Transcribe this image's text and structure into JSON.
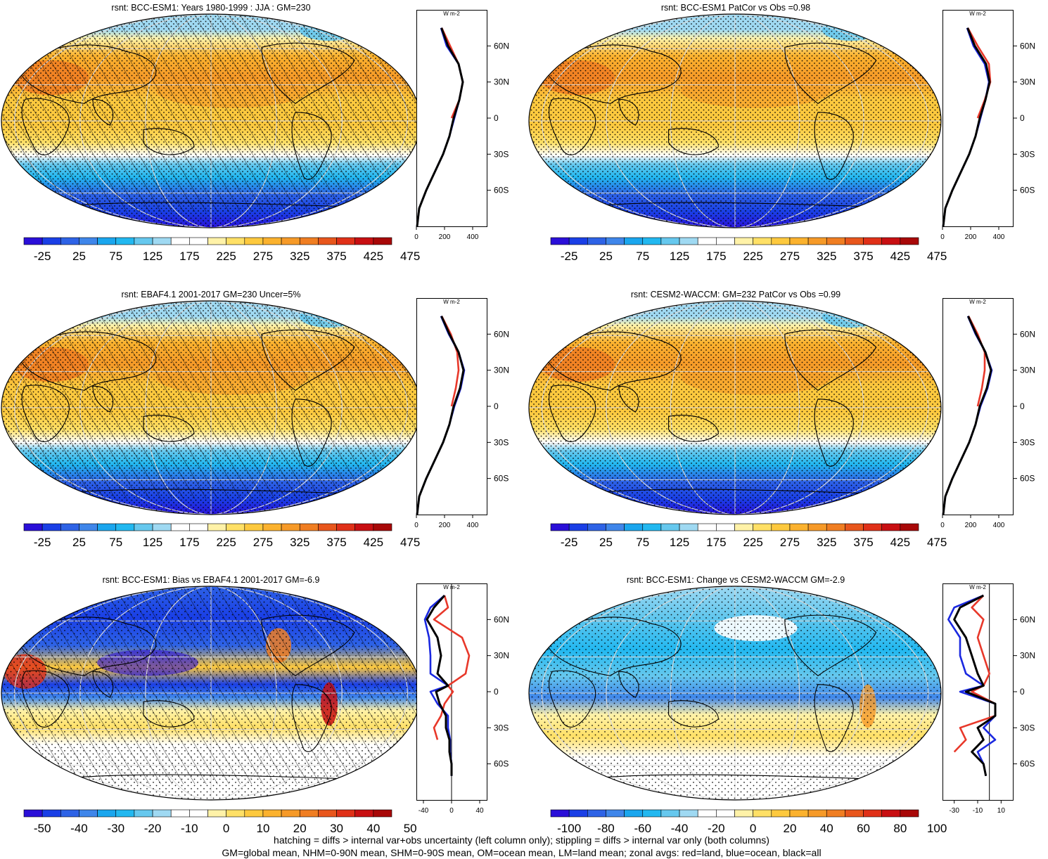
{
  "panels": [
    {
      "id": "p1",
      "title": "rsnt: BCC-ESM1: Years 1980-1999 : JJA : GM=230",
      "map_type": "abs",
      "hatch": true,
      "stipple": "dense",
      "colorbar": {
        "labels": [
          "-25",
          "25",
          "75",
          "125",
          "175",
          "225",
          "275",
          "325",
          "375",
          "425",
          "475"
        ]
      },
      "profile": {
        "xticks": [
          "0",
          "200",
          "400"
        ],
        "xlim": [
          0,
          500
        ],
        "zero": false
      }
    },
    {
      "id": "p2",
      "title": "rsnt: BCC-ESM1 PatCor vs Obs =0.98",
      "map_type": "abs",
      "hatch": false,
      "stipple": "dense",
      "colorbar": {
        "labels": [
          "-25",
          "25",
          "75",
          "125",
          "175",
          "225",
          "275",
          "325",
          "375",
          "425",
          "475"
        ]
      },
      "profile": {
        "xticks": [
          "0",
          "200",
          "400"
        ],
        "xlim": [
          0,
          500
        ],
        "zero": false
      }
    },
    {
      "id": "p3",
      "title": "rsnt: EBAF4.1 2001-2017 GM=230 Uncer=5%",
      "map_type": "abs",
      "hatch": true,
      "stipple": "dense",
      "colorbar": {
        "labels": [
          "-25",
          "25",
          "75",
          "125",
          "175",
          "225",
          "275",
          "325",
          "375",
          "425",
          "475"
        ]
      },
      "profile": {
        "xticks": [
          "0",
          "200",
          "400"
        ],
        "xlim": [
          0,
          500
        ],
        "zero": false
      }
    },
    {
      "id": "p4",
      "title": "rsnt: CESM2-WACCM: GM=232 PatCor vs Obs =0.99",
      "map_type": "abs",
      "hatch": false,
      "stipple": "dense",
      "colorbar": {
        "labels": [
          "-25",
          "25",
          "75",
          "125",
          "175",
          "225",
          "275",
          "325",
          "375",
          "425",
          "475"
        ]
      },
      "profile": {
        "xticks": [
          "0",
          "200",
          "400"
        ],
        "xlim": [
          0,
          500
        ],
        "zero": false
      }
    },
    {
      "id": "p5",
      "title": "rsnt: BCC-ESM1: Bias vs EBAF4.1 2001-2017 GM=-6.9",
      "map_type": "bias",
      "hatch": true,
      "stipple": "sparse",
      "colorbar": {
        "labels": [
          "-50",
          "-40",
          "-30",
          "-20",
          "-10",
          "0",
          "10",
          "20",
          "30",
          "40",
          "50"
        ]
      },
      "profile": {
        "xticks": [
          "-40",
          "0",
          "40"
        ],
        "xlim": [
          -50,
          50
        ],
        "zero": true
      }
    },
    {
      "id": "p6",
      "title": "rsnt: BCC-ESM1: Change vs CESM2-WACCM GM=-2.9",
      "map_type": "change",
      "hatch": false,
      "stipple": "sparse",
      "colorbar": {
        "labels": [
          "-100",
          "-80",
          "-60",
          "-40",
          "-20",
          "0",
          "20",
          "40",
          "60",
          "80",
          "100"
        ]
      },
      "profile": {
        "xticks": [
          "-30",
          "-10",
          "10"
        ],
        "xlim": [
          -40,
          20
        ],
        "zero": true
      }
    }
  ],
  "profile_unit": "W m-2",
  "lat_labels": [
    "60N",
    "30N",
    "0",
    "30S",
    "60S"
  ],
  "colors": {
    "palette": [
      "#2a0fd8",
      "#1a3fe6",
      "#2e63e6",
      "#3f86ea",
      "#1aa6ee",
      "#22b8f0",
      "#66c8ee",
      "#9fd9f2",
      "#ffffff",
      "#ffffff",
      "#fff2a8",
      "#ffe066",
      "#fdc93e",
      "#fbb22e",
      "#f69a28",
      "#f07e22",
      "#e8561c",
      "#e03018",
      "#c80f12",
      "#a80808"
    ],
    "land": "#e8382a",
    "ocean": "#1a28e0",
    "all": "#000000"
  },
  "chart_data": [
    {
      "type": "map-with-zonal-profile",
      "panel": "p1",
      "title": "rsnt: BCC-ESM1: Years 1980-1999 : JJA : GM=230",
      "lat": [
        90,
        75,
        60,
        45,
        30,
        15,
        0,
        -15,
        -30,
        -45,
        -60,
        -75,
        -90
      ],
      "series": [
        {
          "name": "red=land",
          "values": [
            null,
            180,
            240,
            300,
            330,
            305,
            250,
            null,
            null,
            null,
            null,
            null,
            null
          ]
        },
        {
          "name": "blue=ocean",
          "values": [
            null,
            175,
            215,
            300,
            330,
            305,
            270,
            235,
            190,
            130,
            70,
            20,
            5
          ]
        },
        {
          "name": "black=all",
          "values": [
            null,
            178,
            225,
            300,
            330,
            305,
            265,
            235,
            190,
            130,
            70,
            20,
            5
          ]
        }
      ],
      "xlim": [
        0,
        500
      ],
      "ylim": [
        -90,
        90
      ]
    },
    {
      "type": "map-with-zonal-profile",
      "panel": "p2",
      "title": "rsnt: BCC-ESM1 PatCor vs Obs =0.98",
      "lat": [
        90,
        75,
        60,
        45,
        30,
        15,
        0,
        -15,
        -30,
        -45,
        -60,
        -75,
        -90
      ],
      "series": [
        {
          "name": "red=land",
          "values": [
            null,
            180,
            250,
            330,
            340,
            300,
            250,
            null,
            null,
            null,
            null,
            null,
            null
          ]
        },
        {
          "name": "blue=ocean",
          "values": [
            null,
            175,
            220,
            300,
            330,
            305,
            270,
            235,
            190,
            130,
            70,
            20,
            5
          ]
        },
        {
          "name": "black=all",
          "values": [
            null,
            178,
            230,
            310,
            335,
            305,
            265,
            235,
            190,
            130,
            70,
            20,
            5
          ]
        }
      ],
      "xlim": [
        0,
        500
      ],
      "ylim": [
        -90,
        90
      ]
    },
    {
      "type": "map-with-zonal-profile",
      "panel": "p3",
      "title": "rsnt: EBAF4.1 2001-2017 GM=230 Uncer=5%",
      "lat": [
        90,
        75,
        60,
        45,
        30,
        15,
        0,
        -15,
        -30,
        -45,
        -60,
        -75,
        -90
      ],
      "series": [
        {
          "name": "red=land",
          "values": [
            null,
            180,
            245,
            290,
            300,
            280,
            250,
            null,
            null,
            null,
            null,
            null,
            null
          ]
        },
        {
          "name": "blue=ocean",
          "values": [
            null,
            175,
            230,
            300,
            340,
            315,
            270,
            235,
            190,
            130,
            70,
            20,
            5
          ]
        },
        {
          "name": "black=all",
          "values": [
            null,
            178,
            235,
            300,
            335,
            310,
            265,
            235,
            190,
            130,
            70,
            20,
            5
          ]
        }
      ],
      "xlim": [
        0,
        500
      ],
      "ylim": [
        -90,
        90
      ]
    },
    {
      "type": "map-with-zonal-profile",
      "panel": "p4",
      "title": "rsnt: CESM2-WACCM: GM=232 PatCor vs Obs =0.99",
      "lat": [
        90,
        75,
        60,
        45,
        30,
        15,
        0,
        -15,
        -30,
        -45,
        -60,
        -75,
        -90
      ],
      "series": [
        {
          "name": "red=land",
          "values": [
            null,
            185,
            250,
            300,
            300,
            280,
            250,
            null,
            null,
            null,
            null,
            null,
            null
          ]
        },
        {
          "name": "blue=ocean",
          "values": [
            null,
            180,
            235,
            305,
            350,
            320,
            270,
            235,
            190,
            130,
            70,
            20,
            5
          ]
        },
        {
          "name": "black=all",
          "values": [
            null,
            182,
            240,
            305,
            345,
            315,
            265,
            235,
            190,
            130,
            70,
            20,
            5
          ]
        }
      ],
      "xlim": [
        0,
        500
      ],
      "ylim": [
        -90,
        90
      ]
    },
    {
      "type": "map-with-zonal-profile",
      "panel": "p5",
      "title": "rsnt: BCC-ESM1: Bias vs EBAF4.1 2001-2017 GM=-6.9",
      "lat": [
        80,
        70,
        60,
        45,
        30,
        15,
        5,
        0,
        -10,
        -20,
        -30,
        -40,
        -50,
        -60,
        -70
      ],
      "series": [
        {
          "name": "red=land",
          "values": [
            -10,
            -5,
            -25,
            15,
            25,
            20,
            -5,
            2,
            -10,
            -15,
            -25,
            -20,
            null,
            null,
            null
          ]
        },
        {
          "name": "blue=ocean",
          "values": [
            -10,
            -30,
            -38,
            -32,
            -30,
            -30,
            -5,
            -30,
            -20,
            -5,
            -5,
            -2,
            -2,
            0,
            0
          ]
        },
        {
          "name": "black=all",
          "values": [
            -10,
            -25,
            -35,
            -20,
            -15,
            -20,
            -5,
            -22,
            -17,
            -8,
            -8,
            -3,
            -3,
            0,
            0
          ]
        }
      ],
      "xlim": [
        -50,
        50
      ],
      "ylim": [
        -90,
        90
      ]
    },
    {
      "type": "map-with-zonal-profile",
      "panel": "p6",
      "title": "rsnt: BCC-ESM1: Change vs CESM2-WACCM GM=-2.9",
      "lat": [
        80,
        70,
        60,
        45,
        30,
        15,
        5,
        0,
        -10,
        -20,
        -30,
        -40,
        -50,
        -60,
        -70
      ],
      "series": [
        {
          "name": "red=land",
          "values": [
            -5,
            -15,
            -5,
            -10,
            -5,
            0,
            -5,
            -15,
            5,
            5,
            -25,
            -20,
            -30,
            null,
            null
          ]
        },
        {
          "name": "blue=ocean",
          "values": [
            -5,
            -30,
            -35,
            -25,
            -25,
            -20,
            -5,
            -25,
            5,
            5,
            -5,
            5,
            -10,
            -5,
            -3
          ]
        },
        {
          "name": "black=all",
          "values": [
            -5,
            -25,
            -30,
            -20,
            -15,
            -10,
            -5,
            -20,
            5,
            5,
            -10,
            -5,
            -15,
            -5,
            -3
          ]
        }
      ],
      "xlim": [
        -40,
        20
      ],
      "ylim": [
        -90,
        90
      ]
    }
  ],
  "footnote": {
    "line1": "hatching = diffs > internal var+obs uncertainty (left column only); stippling = diffs > internal var only (both columns)",
    "line2": "GM=global mean, NHM=0-90N mean, SHM=0-90S mean, OM=ocean mean, LM=land mean; zonal avgs: red=land, blue=ocean, black=all"
  }
}
